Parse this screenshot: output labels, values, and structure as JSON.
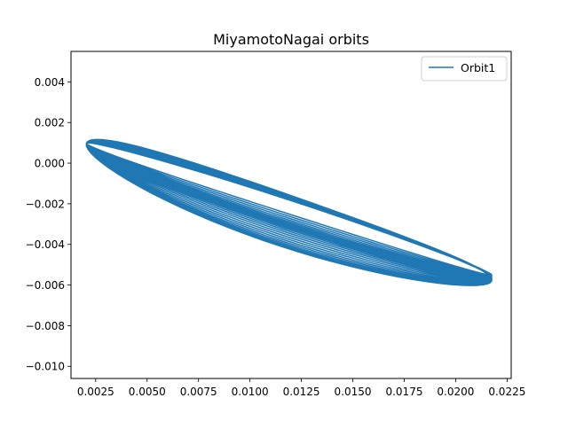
{
  "chart_data": {
    "type": "line",
    "title": "MiyamotoNagai orbits",
    "xlabel": "",
    "ylabel": "",
    "xlim": [
      0.0013,
      0.0227
    ],
    "ylim": [
      -0.0106,
      0.0055
    ],
    "grid": false,
    "legend_position": "top-right",
    "x_ticks": [
      0.0025,
      0.005,
      0.0075,
      0.01,
      0.0125,
      0.015,
      0.0175,
      0.02,
      0.0225
    ],
    "x_tick_labels": [
      "0.0025",
      "0.0050",
      "0.0075",
      "0.0100",
      "0.0125",
      "0.0150",
      "0.0175",
      "0.0200",
      "0.0225"
    ],
    "y_ticks": [
      0.004,
      0.002,
      0.0,
      -0.002,
      -0.004,
      -0.006,
      -0.008,
      -0.01
    ],
    "y_tick_labels": [
      "0.004",
      "0.002",
      "0.000",
      "−0.002",
      "−0.004",
      "−0.006",
      "−0.008",
      "−0.010"
    ],
    "series": [
      {
        "name": "Orbit1",
        "color": "#1f77b4",
        "orbit_model": {
          "loops": 22,
          "samples_per_loop": 72,
          "endpoint_a": [
            0.00205,
            0.00098
          ],
          "endpoint_b_start": [
            0.02175,
            -0.0058
          ],
          "endpoint_b_end": [
            0.02175,
            -0.0055
          ],
          "width_start": 0.00125,
          "width_end": 0.00033,
          "width_dip": 5e-05,
          "skew": 0.1,
          "center_shift_start": [
            0.0,
            -0.0005
          ],
          "center_shift_end": [
            0.0,
            0.0001
          ]
        }
      }
    ]
  }
}
